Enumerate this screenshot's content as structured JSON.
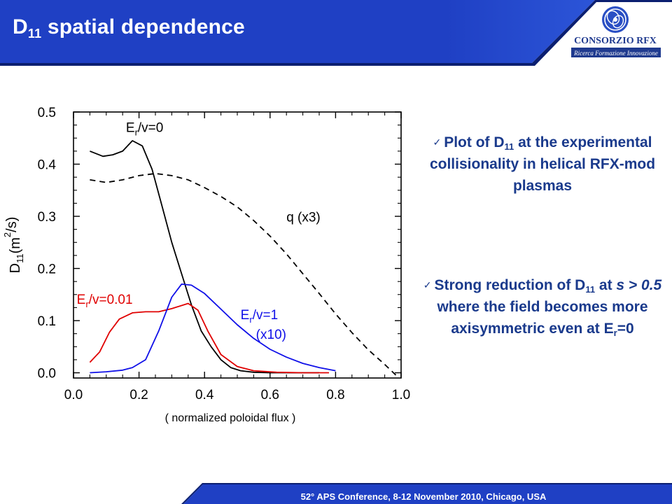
{
  "header": {
    "title_main": "D",
    "title_sub": "11",
    "title_rest": " spatial dependence",
    "color": "#1f40c4"
  },
  "logo": {
    "name": "CONSORZIO RFX",
    "tagline": "Ricerca Formazione Innovazione"
  },
  "bullets": [
    {
      "check": "✓",
      "p1": "Plot of D",
      "p1_sub": "11",
      "p2": " at the experimental collisionality in helical RFX-mod plasmas"
    },
    {
      "check": "✓",
      "p1": "Strong reduction of D",
      "p1_sub": "11",
      "p2": " at ",
      "p2_italic": "s > 0.5",
      "p3": " where the field becomes more axisymmetric even at E",
      "p3_sub": "r",
      "p4": "=0"
    }
  ],
  "footer": {
    "text": "52° APS Conference, 8-12 November 2010, Chicago, USA"
  },
  "chart_data": {
    "type": "line",
    "xlabel": "( normalized poloidal flux )",
    "ylabel_main": "D",
    "ylabel_sub": "11",
    "ylabel_rest": "(m",
    "ylabel_sup": "2",
    "ylabel_end": "/s)",
    "xlim": [
      0,
      1.0
    ],
    "ylim": [
      -0.01,
      0.5
    ],
    "xticks": [
      "0.0",
      "0.2",
      "0.4",
      "0.6",
      "0.8",
      "1.0"
    ],
    "xtick_values": [
      0,
      0.2,
      0.4,
      0.6,
      0.8,
      1.0
    ],
    "yticks": [
      "0.0",
      "0.1",
      "0.2",
      "0.3",
      "0.4",
      "0.5"
    ],
    "ytick_values": [
      0,
      0.1,
      0.2,
      0.3,
      0.4,
      0.5
    ],
    "series": [
      {
        "label_main": "E",
        "label_sub": "r",
        "label_rest": "/v=0",
        "label_line2": "",
        "color": "#000000",
        "dash": "",
        "x": [
          0.05,
          0.09,
          0.12,
          0.15,
          0.18,
          0.21,
          0.24,
          0.27,
          0.3,
          0.33,
          0.36,
          0.39,
          0.42,
          0.45,
          0.48,
          0.51,
          0.55,
          0.6,
          0.65,
          0.7,
          0.75
        ],
        "y": [
          0.425,
          0.415,
          0.418,
          0.425,
          0.445,
          0.435,
          0.39,
          0.32,
          0.25,
          0.19,
          0.13,
          0.08,
          0.05,
          0.025,
          0.01,
          0.004,
          0.001,
          0.0,
          0.0,
          0.0,
          0.0
        ]
      },
      {
        "label_main": "q (x3)",
        "label_sub": "",
        "label_rest": "",
        "label_line2": "",
        "color": "#000000",
        "dash": "8,6",
        "x": [
          0.05,
          0.1,
          0.15,
          0.2,
          0.25,
          0.3,
          0.35,
          0.4,
          0.45,
          0.5,
          0.55,
          0.6,
          0.65,
          0.7,
          0.75,
          0.8,
          0.85,
          0.9,
          0.95,
          0.99
        ],
        "y": [
          0.37,
          0.365,
          0.37,
          0.378,
          0.382,
          0.378,
          0.37,
          0.355,
          0.338,
          0.318,
          0.292,
          0.262,
          0.228,
          0.19,
          0.152,
          0.113,
          0.077,
          0.044,
          0.016,
          -0.008
        ]
      },
      {
        "label_main": "E",
        "label_sub": "r",
        "label_rest": "/v=0.01",
        "label_line2": "",
        "color": "#e00000",
        "dash": "",
        "x": [
          0.05,
          0.08,
          0.11,
          0.14,
          0.18,
          0.22,
          0.26,
          0.3,
          0.35,
          0.38,
          0.41,
          0.45,
          0.5,
          0.55,
          0.62,
          0.7,
          0.78
        ],
        "y": [
          0.02,
          0.04,
          0.078,
          0.103,
          0.115,
          0.117,
          0.117,
          0.123,
          0.133,
          0.12,
          0.08,
          0.035,
          0.012,
          0.004,
          0.001,
          0.0,
          0.0
        ]
      },
      {
        "label_main": "E",
        "label_sub": "r",
        "label_rest": "/v=1",
        "label_line2": "(x10)",
        "color": "#1010e8",
        "dash": "",
        "x": [
          0.05,
          0.1,
          0.15,
          0.18,
          0.22,
          0.26,
          0.3,
          0.33,
          0.36,
          0.4,
          0.45,
          0.5,
          0.55,
          0.6,
          0.65,
          0.7,
          0.75,
          0.8
        ],
        "y": [
          0.0,
          0.002,
          0.005,
          0.01,
          0.025,
          0.08,
          0.145,
          0.17,
          0.168,
          0.152,
          0.122,
          0.092,
          0.066,
          0.045,
          0.03,
          0.018,
          0.01,
          0.004
        ]
      }
    ]
  }
}
